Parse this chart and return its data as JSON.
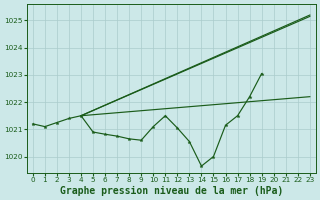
{
  "title": "Graphe pression niveau de la mer (hPa)",
  "bg_color": "#cce8e8",
  "grid_color": "#aacccc",
  "line_color": "#1a5c1a",
  "ylim": [
    1019.4,
    1025.6
  ],
  "yticks": [
    1020,
    1021,
    1022,
    1023,
    1024,
    1025
  ],
  "tick_fontsize": 5.2,
  "title_fontsize": 7.0,
  "series": {
    "current": {
      "x": [
        0,
        1,
        2,
        3,
        4,
        5,
        6,
        7,
        8,
        9,
        10,
        11,
        12,
        13,
        14,
        15,
        16,
        17,
        18,
        19
      ],
      "y": [
        1021.2,
        1021.1,
        1021.25,
        1021.4,
        1021.5,
        1020.9,
        1020.82,
        1020.75,
        1020.65,
        1020.6,
        1021.1,
        1021.5,
        1021.05,
        1020.55,
        1019.65,
        1020.0,
        1021.15,
        1021.5,
        1022.2,
        1023.05
      ]
    },
    "high": {
      "x": [
        4,
        23
      ],
      "y": [
        1021.5,
        1025.2
      ]
    },
    "mid": {
      "x": [
        4,
        23
      ],
      "y": [
        1021.5,
        1022.2
      ]
    },
    "avg": {
      "x": [
        4,
        23
      ],
      "y": [
        1021.5,
        1025.15
      ]
    }
  },
  "lw": 0.85,
  "ms": 2.5
}
